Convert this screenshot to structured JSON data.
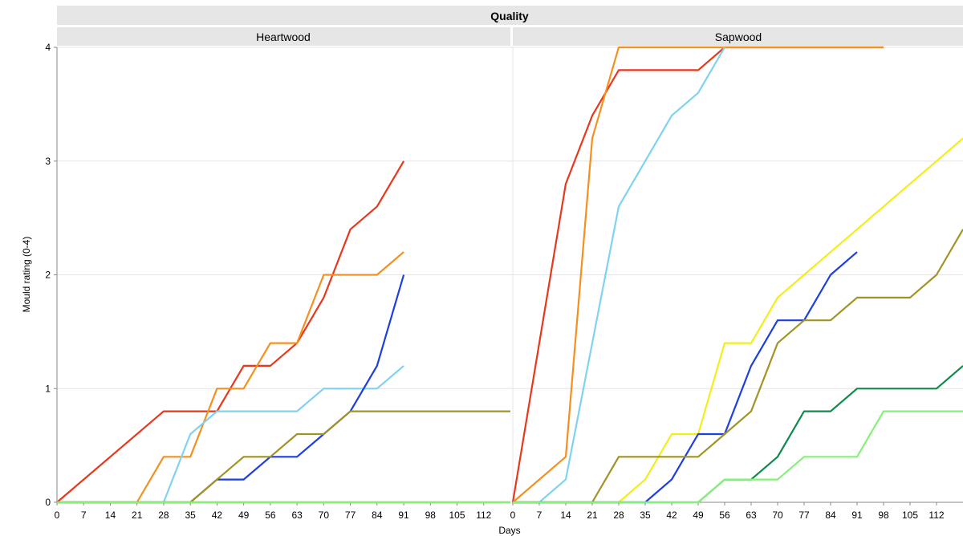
{
  "chart_data": {
    "type": "line",
    "title": "Quality",
    "xlabel": "Days",
    "ylabel": "Mould rating (0-4)",
    "ylim": [
      0,
      4
    ],
    "yticks": [
      "0",
      "1",
      "2",
      "3",
      "4"
    ],
    "xticks": [
      "0",
      "7",
      "14",
      "21",
      "28",
      "35",
      "42",
      "49",
      "56",
      "63",
      "70",
      "77",
      "84",
      "91",
      "98",
      "105",
      "112"
    ],
    "grid": true,
    "panels": [
      {
        "name": "Heartwood",
        "xlim": [
          0,
          119
        ],
        "series": [
          {
            "color": "#e8371c",
            "x": [
              0,
              28,
              42,
              49,
              56,
              63,
              70,
              77,
              84,
              91
            ],
            "values": [
              0,
              0.8,
              0.8,
              1.2,
              1.2,
              1.4,
              1.8,
              2.4,
              2.6,
              3.0
            ]
          },
          {
            "color": "#f5901e",
            "x": [
              0,
              21,
              28,
              35,
              42,
              49,
              56,
              63,
              70,
              77,
              84,
              91
            ],
            "values": [
              0,
              0,
              0.4,
              0.4,
              1.0,
              1.0,
              1.4,
              1.4,
              2.0,
              2.0,
              2.0,
              2.2
            ]
          },
          {
            "color": "#7fd2f0",
            "x": [
              0,
              28,
              35,
              42,
              49,
              56,
              63,
              70,
              77,
              84,
              91
            ],
            "values": [
              0,
              0,
              0.6,
              0.8,
              0.8,
              0.8,
              0.8,
              1.0,
              1.0,
              1.0,
              1.2
            ]
          },
          {
            "color": "#1d3ee0",
            "x": [
              0,
              35,
              42,
              49,
              56,
              63,
              70,
              77,
              84,
              91
            ],
            "values": [
              0,
              0,
              0.2,
              0.2,
              0.4,
              0.4,
              0.6,
              0.8,
              1.2,
              2.0
            ]
          },
          {
            "color": "#a19324",
            "x": [
              0,
              35,
              42,
              49,
              56,
              63,
              70,
              77,
              84,
              91,
              98,
              105,
              112,
              119
            ],
            "values": [
              0,
              0,
              0.2,
              0.4,
              0.4,
              0.6,
              0.6,
              0.8,
              0.8,
              0.8,
              0.8,
              0.8,
              0.8,
              0.8
            ]
          },
          {
            "color": "#f2ee1a",
            "x": [
              0,
              119
            ],
            "values": [
              0,
              0
            ]
          },
          {
            "color": "#0e8a4a",
            "x": [
              0,
              119
            ],
            "values": [
              0,
              0
            ]
          },
          {
            "color": "#86f07a",
            "x": [
              0,
              119
            ],
            "values": [
              0,
              0
            ]
          }
        ]
      },
      {
        "name": "Sapwood",
        "xlim": [
          0,
          119
        ],
        "series": [
          {
            "color": "#e8371c",
            "x": [
              0,
              14,
              21,
              28,
              35,
              42,
              49,
              56,
              63,
              70,
              77,
              84,
              91,
              98
            ],
            "values": [
              0,
              2.8,
              3.4,
              3.8,
              3.8,
              3.8,
              3.8,
              4.0,
              4.0,
              4.0,
              4.0,
              4.0,
              4.0,
              4.0
            ]
          },
          {
            "color": "#f5901e",
            "x": [
              0,
              14,
              21,
              28,
              35,
              42,
              49,
              56,
              63,
              70,
              77,
              84,
              91,
              98
            ],
            "values": [
              0,
              0.4,
              3.2,
              4.0,
              4.0,
              4.0,
              4.0,
              4.0,
              4.0,
              4.0,
              4.0,
              4.0,
              4.0,
              4.0
            ]
          },
          {
            "color": "#7fd2f0",
            "x": [
              0,
              7,
              14,
              21,
              28,
              35,
              42,
              49,
              56
            ],
            "values": [
              0,
              0,
              0.2,
              1.4,
              2.6,
              3.0,
              3.4,
              3.6,
              4.0
            ]
          },
          {
            "color": "#f2ee1a",
            "x": [
              0,
              28,
              35,
              42,
              49,
              56,
              63,
              70,
              77,
              84,
              91,
              98,
              105,
              112,
              119
            ],
            "values": [
              0,
              0,
              0.2,
              0.6,
              0.6,
              1.4,
              1.4,
              1.8,
              2.0,
              2.2,
              2.4,
              2.6,
              2.8,
              3.0,
              3.2
            ]
          },
          {
            "color": "#1d3ee0",
            "x": [
              0,
              35,
              42,
              49,
              56,
              63,
              70,
              77,
              84,
              91
            ],
            "values": [
              0,
              0,
              0.2,
              0.6,
              0.6,
              1.2,
              1.6,
              1.6,
              2.0,
              2.2
            ]
          },
          {
            "color": "#a19324",
            "x": [
              0,
              21,
              28,
              35,
              42,
              49,
              56,
              63,
              70,
              77,
              84,
              91,
              98,
              105,
              112,
              119
            ],
            "values": [
              0,
              0,
              0.4,
              0.4,
              0.4,
              0.4,
              0.6,
              0.8,
              1.4,
              1.6,
              1.6,
              1.8,
              1.8,
              1.8,
              2.0,
              2.4
            ]
          },
          {
            "color": "#0e8a4a",
            "x": [
              0,
              49,
              56,
              63,
              70,
              77,
              84,
              91,
              98,
              105,
              112,
              119
            ],
            "values": [
              0,
              0,
              0.2,
              0.2,
              0.4,
              0.8,
              0.8,
              1.0,
              1.0,
              1.0,
              1.0,
              1.2
            ]
          },
          {
            "color": "#86f07a",
            "x": [
              0,
              49,
              56,
              63,
              70,
              77,
              84,
              91,
              98,
              105,
              112,
              119
            ],
            "values": [
              0,
              0,
              0.2,
              0.2,
              0.2,
              0.4,
              0.4,
              0.4,
              0.8,
              0.8,
              0.8,
              0.8
            ]
          }
        ]
      }
    ]
  }
}
